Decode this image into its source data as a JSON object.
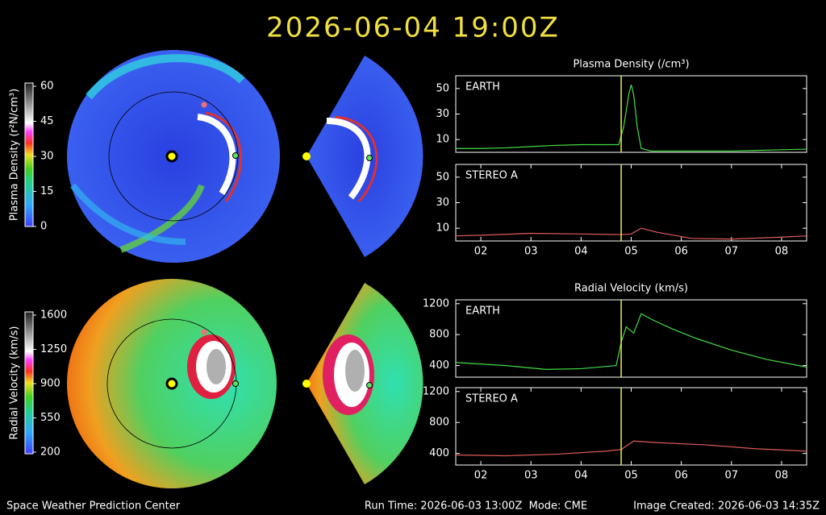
{
  "header": {
    "timestamp": "2026-06-04 19:00Z"
  },
  "colorbars": [
    {
      "label": "Plasma Density (r²N/cm³)",
      "ticks": [
        60,
        45,
        30,
        15,
        0
      ]
    },
    {
      "label": "Radial Velocity (km/s)",
      "ticks": [
        1600,
        1250,
        900,
        550,
        200
      ]
    }
  ],
  "chart_data": [
    {
      "type": "line",
      "title": "Plasma Density (/cm³)",
      "x": [
        1.5,
        2,
        2.5,
        3,
        3.5,
        4,
        4.5,
        4.75,
        4.85,
        4.95,
        5.0,
        5.05,
        5.12,
        5.2,
        5.4,
        6,
        7,
        7.5,
        8,
        8.5
      ],
      "series": [
        {
          "name": "EARTH",
          "color": "#44dd44",
          "values": [
            3,
            3,
            3.5,
            4.5,
            5.5,
            6,
            6,
            6,
            20,
            45,
            53,
            45,
            20,
            3,
            1,
            1,
            1,
            1.5,
            2,
            2.5
          ]
        }
      ],
      "xlim": [
        1.5,
        8.5
      ],
      "ylim": [
        0,
        60
      ],
      "yticks": [
        10,
        30,
        50
      ],
      "vline": 4.8
    },
    {
      "type": "line",
      "x": [
        1.5,
        2,
        3,
        4,
        4.8,
        5.0,
        5.2,
        5.5,
        6.2,
        7,
        8,
        8.5
      ],
      "series": [
        {
          "name": "STEREO A",
          "color": "#e05a5a",
          "values": [
            4,
            4.5,
            6,
            5.5,
            5,
            5.5,
            10,
            7,
            2,
            1.5,
            3,
            4
          ]
        }
      ],
      "xlim": [
        1.5,
        8.5
      ],
      "ylim": [
        0,
        60
      ],
      "yticks": [
        10,
        30,
        50
      ],
      "vline": 4.8,
      "xticks": [
        {
          "value": 2,
          "label": "02"
        },
        {
          "value": 3,
          "label": "03"
        },
        {
          "value": 4,
          "label": "04"
        },
        {
          "value": 5,
          "label": "05"
        },
        {
          "value": 6,
          "label": "06"
        },
        {
          "value": 7,
          "label": "07"
        },
        {
          "value": 8,
          "label": "08"
        }
      ]
    },
    {
      "type": "line",
      "title": "Radial Velocity (km/s)",
      "x": [
        1.5,
        2.5,
        3.3,
        4,
        4.7,
        4.8,
        4.9,
        5.05,
        5.2,
        5.4,
        5.8,
        6.3,
        7,
        7.7,
        8.5
      ],
      "series": [
        {
          "name": "EARTH",
          "color": "#44dd44",
          "values": [
            440,
            400,
            350,
            360,
            400,
            700,
            900,
            820,
            1070,
            1000,
            880,
            750,
            600,
            480,
            380
          ]
        }
      ],
      "xlim": [
        1.5,
        8.5
      ],
      "ylim": [
        250,
        1250
      ],
      "yticks": [
        400,
        800,
        1200
      ],
      "vline": 4.8
    },
    {
      "type": "line",
      "x": [
        1.5,
        2.5,
        3.5,
        4.5,
        4.8,
        5.05,
        5.5,
        6.5,
        7.5,
        8.5
      ],
      "series": [
        {
          "name": "STEREO A",
          "color": "#e05a5a",
          "values": [
            380,
            370,
            390,
            430,
            450,
            560,
            540,
            510,
            460,
            430
          ]
        }
      ],
      "xlim": [
        1.5,
        8.5
      ],
      "ylim": [
        250,
        1250
      ],
      "yticks": [
        400,
        800,
        1200
      ],
      "vline": 4.8,
      "xticks": [
        {
          "value": 2,
          "label": "02"
        },
        {
          "value": 3,
          "label": "03"
        },
        {
          "value": 4,
          "label": "04"
        },
        {
          "value": 5,
          "label": "05"
        },
        {
          "value": 6,
          "label": "06"
        },
        {
          "value": 7,
          "label": "07"
        },
        {
          "value": 8,
          "label": "08"
        }
      ]
    }
  ],
  "footer": {
    "left": "Space Weather Prediction Center",
    "center": "Run Time: 2026-06-03 13:00Z  Mode: CME",
    "right": "Image Created: 2026-06-03 14:35Z"
  }
}
